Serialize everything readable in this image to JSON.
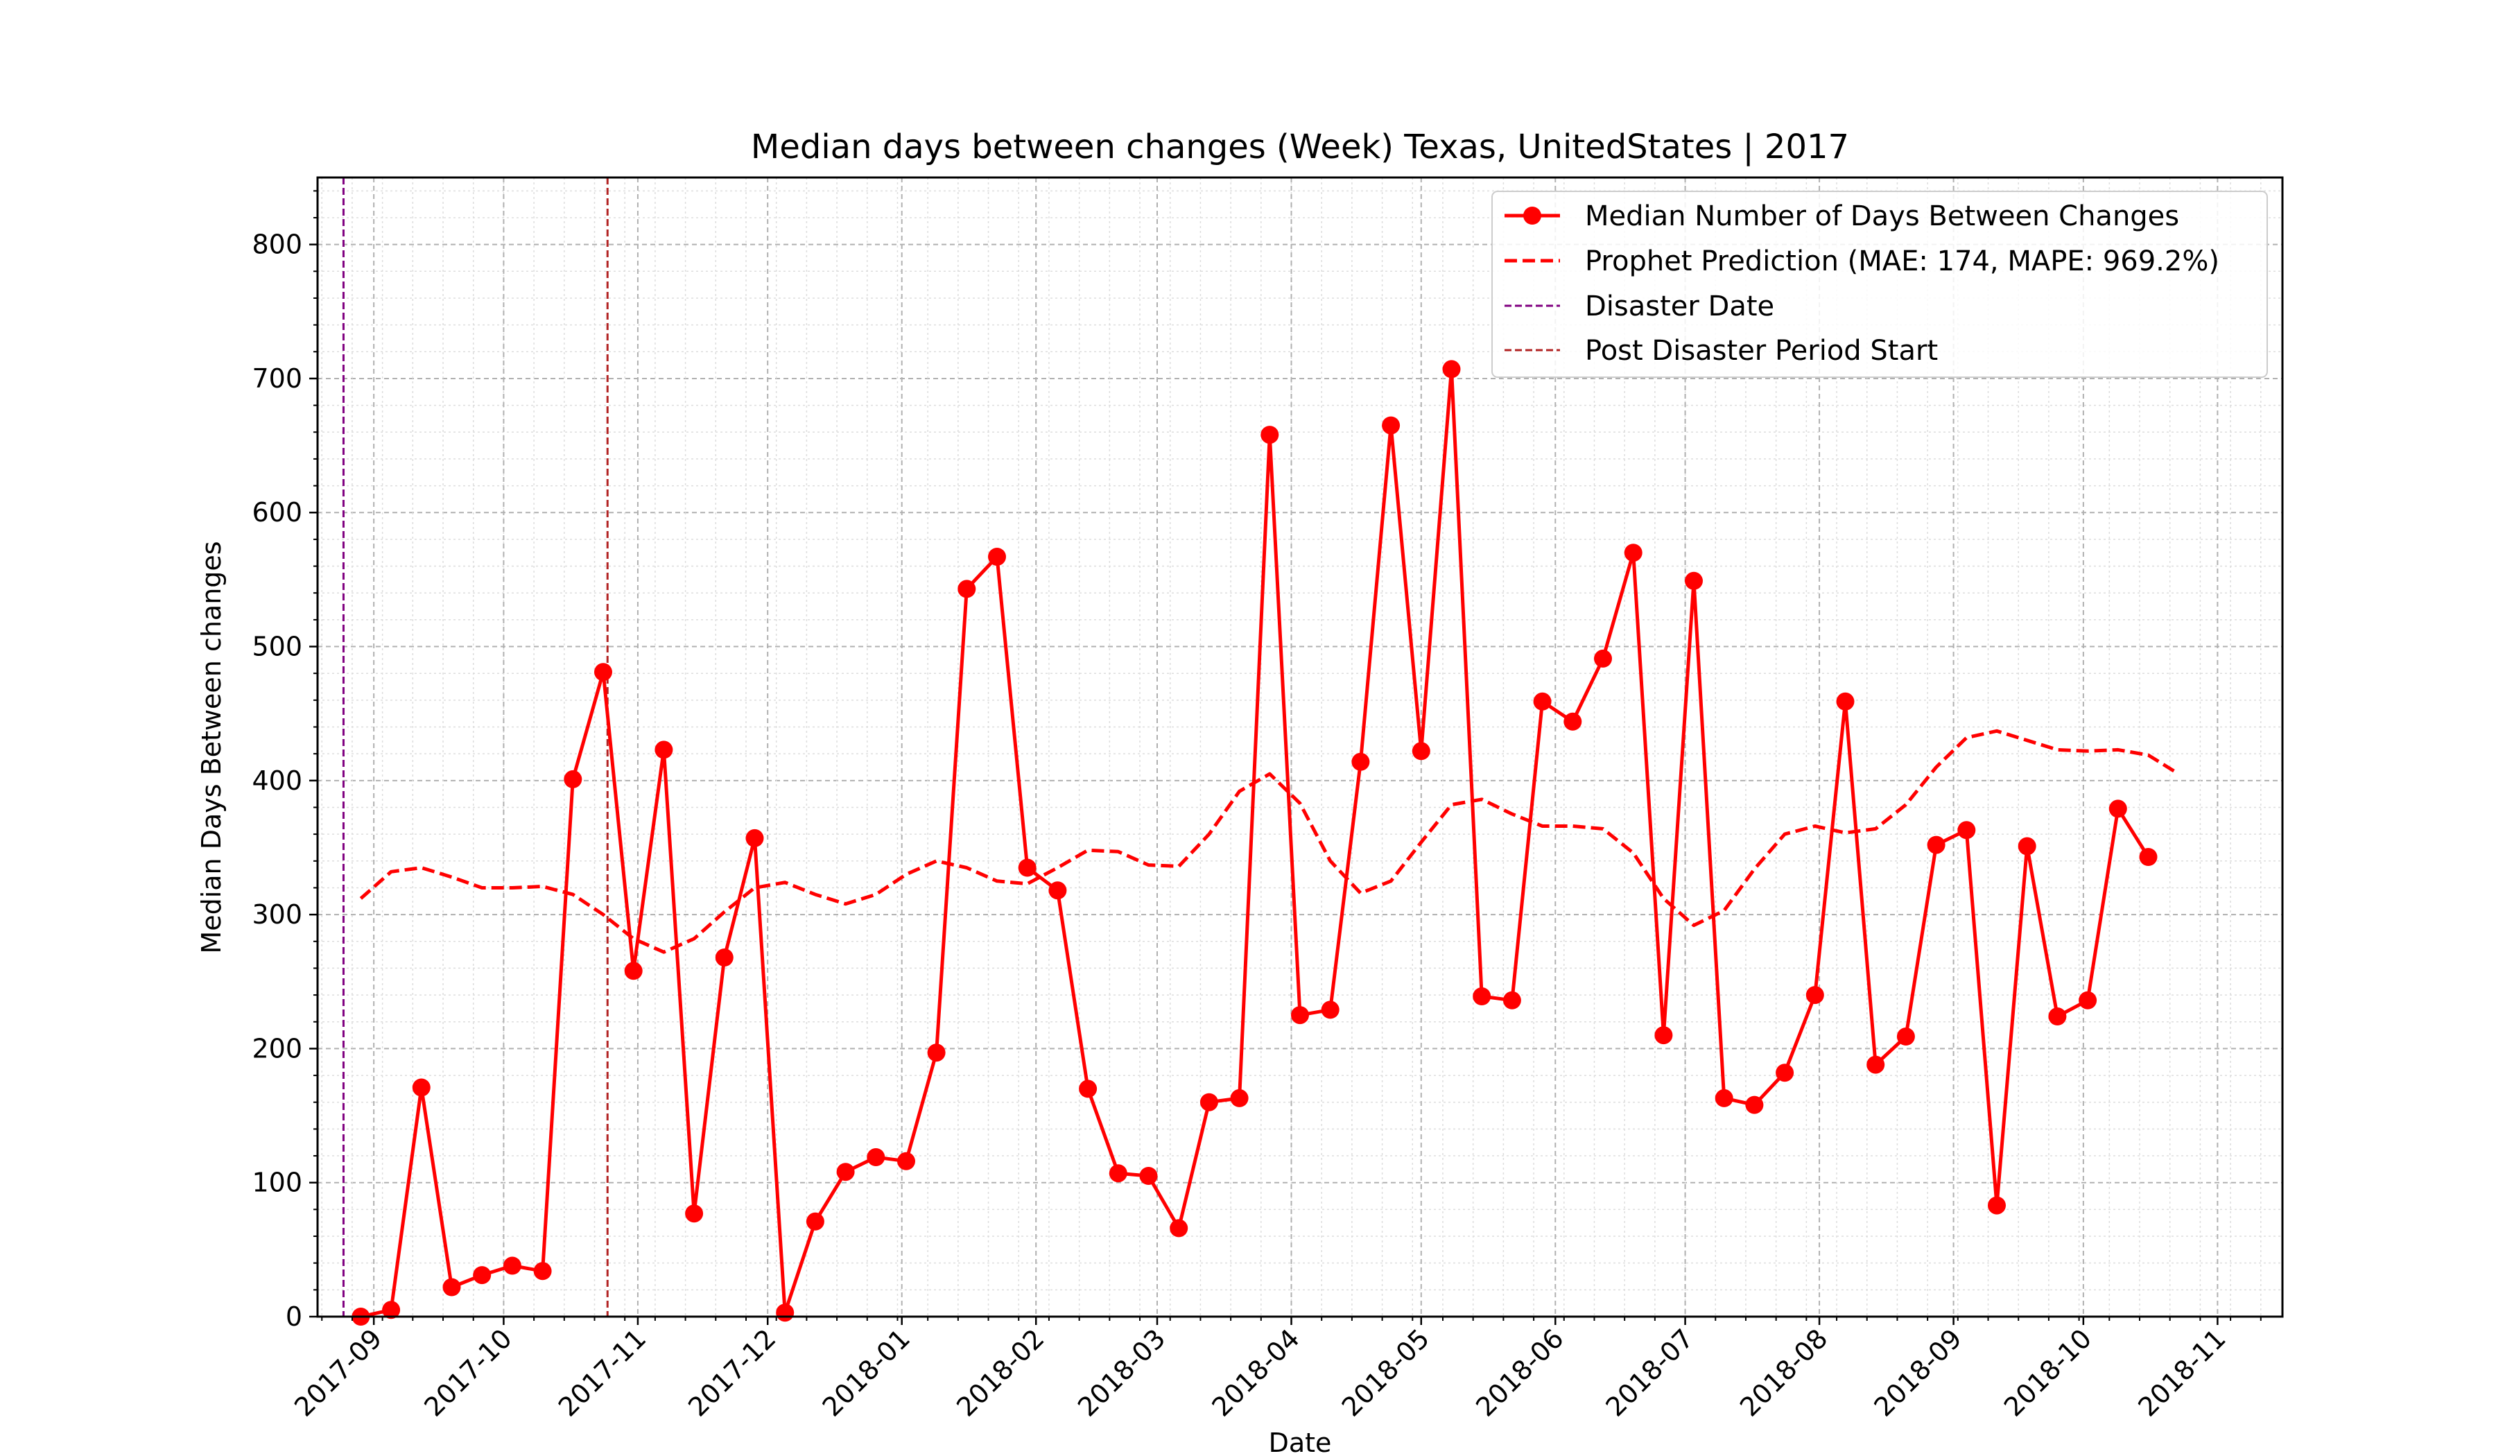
{
  "chart_data": {
    "type": "line",
    "title": "Median days between changes (Week) Texas, UnitedStates | 2017",
    "xlabel": "Date",
    "ylabel": "Median Days Between changes",
    "ylim": [
      0,
      850
    ],
    "y_ticks": [
      0,
      100,
      200,
      300,
      400,
      500,
      600,
      700,
      800
    ],
    "x_range": [
      "2017-08-19",
      "2018-11-16"
    ],
    "x_ticks": [
      "2017-09",
      "2017-10",
      "2017-11",
      "2017-12",
      "2018-01",
      "2018-02",
      "2018-03",
      "2018-04",
      "2018-05",
      "2018-06",
      "2018-07",
      "2018-08",
      "2018-09",
      "2018-10",
      "2018-11"
    ],
    "grid": true,
    "legend_position": "upper-right",
    "colors": {
      "actual": "#ff0000",
      "prediction": "#ff0000",
      "disaster": "#800080",
      "post": "#b22222"
    },
    "disaster_date": "2017-08-25",
    "post_disaster_start": "2017-10-25",
    "series": [
      {
        "name": "Median Number of Days Between Changes",
        "style": "solid-markers",
        "x": [
          "2017-08-29",
          "2017-09-05",
          "2017-09-12",
          "2017-09-19",
          "2017-09-26",
          "2017-10-03",
          "2017-10-10",
          "2017-10-17",
          "2017-10-24",
          "2017-10-31",
          "2017-11-07",
          "2017-11-14",
          "2017-11-21",
          "2017-11-28",
          "2017-12-05",
          "2017-12-12",
          "2017-12-19",
          "2017-12-26",
          "2018-01-02",
          "2018-01-09",
          "2018-01-16",
          "2018-01-23",
          "2018-01-30",
          "2018-02-06",
          "2018-02-13",
          "2018-02-20",
          "2018-02-27",
          "2018-03-06",
          "2018-03-13",
          "2018-03-20",
          "2018-03-27",
          "2018-04-03",
          "2018-04-10",
          "2018-04-17",
          "2018-04-24",
          "2018-05-01",
          "2018-05-08",
          "2018-05-15",
          "2018-05-22",
          "2018-05-29",
          "2018-06-05",
          "2018-06-12",
          "2018-06-19",
          "2018-06-26",
          "2018-07-03",
          "2018-07-10",
          "2018-07-17",
          "2018-07-24",
          "2018-07-31",
          "2018-08-07",
          "2018-08-14",
          "2018-08-21",
          "2018-08-28",
          "2018-09-04",
          "2018-09-11",
          "2018-09-18",
          "2018-09-25",
          "2018-10-02",
          "2018-10-09",
          "2018-10-16"
        ],
        "y": [
          0,
          5,
          171,
          22,
          31,
          38,
          34,
          401,
          481,
          258,
          423,
          77,
          268,
          357,
          3,
          71,
          108,
          119,
          116,
          197,
          543,
          567,
          335,
          318,
          170,
          107,
          105,
          66,
          160,
          163,
          658,
          225,
          229,
          414,
          665,
          422,
          707,
          239,
          236,
          459,
          444,
          491,
          570,
          210,
          549,
          163,
          158,
          182,
          240,
          459,
          188,
          209,
          352,
          363,
          83,
          351,
          224,
          236,
          379,
          343
        ]
      },
      {
        "name": "Prophet Prediction (MAE: 174, MAPE: 969.2%)",
        "style": "dashed",
        "x": [
          "2017-08-29",
          "2017-09-05",
          "2017-09-12",
          "2017-09-19",
          "2017-09-26",
          "2017-10-03",
          "2017-10-10",
          "2017-10-17",
          "2017-10-24",
          "2017-10-31",
          "2017-11-07",
          "2017-11-14",
          "2017-11-21",
          "2017-11-28",
          "2017-12-05",
          "2017-12-12",
          "2017-12-19",
          "2017-12-26",
          "2018-01-02",
          "2018-01-09",
          "2018-01-16",
          "2018-01-23",
          "2018-01-30",
          "2018-02-06",
          "2018-02-13",
          "2018-02-20",
          "2018-02-27",
          "2018-03-06",
          "2018-03-13",
          "2018-03-20",
          "2018-03-27",
          "2018-04-03",
          "2018-04-10",
          "2018-04-17",
          "2018-04-24",
          "2018-05-01",
          "2018-05-08",
          "2018-05-15",
          "2018-05-22",
          "2018-05-29",
          "2018-06-05",
          "2018-06-12",
          "2018-06-19",
          "2018-06-26",
          "2018-07-03",
          "2018-07-10",
          "2018-07-17",
          "2018-07-24",
          "2018-07-31",
          "2018-08-07",
          "2018-08-14",
          "2018-08-21",
          "2018-08-28",
          "2018-09-04",
          "2018-09-11",
          "2018-09-18",
          "2018-09-25",
          "2018-10-02",
          "2018-10-09",
          "2018-10-16",
          "2018-10-23"
        ],
        "y": [
          312,
          332,
          335,
          328,
          320,
          320,
          321,
          315,
          300,
          282,
          272,
          282,
          302,
          320,
          324,
          315,
          308,
          315,
          330,
          340,
          335,
          325,
          323,
          335,
          348,
          347,
          337,
          336,
          360,
          392,
          405,
          383,
          340,
          316,
          325,
          354,
          382,
          386,
          375,
          366,
          366,
          364,
          346,
          312,
          292,
          303,
          334,
          360,
          366,
          361,
          364,
          382,
          410,
          432,
          437,
          430,
          423,
          422,
          423,
          419,
          405
        ]
      },
      {
        "name": "Disaster Date",
        "style": "vline-dashed"
      },
      {
        "name": "Post Disaster Period Start",
        "style": "vline-dashed"
      }
    ]
  }
}
